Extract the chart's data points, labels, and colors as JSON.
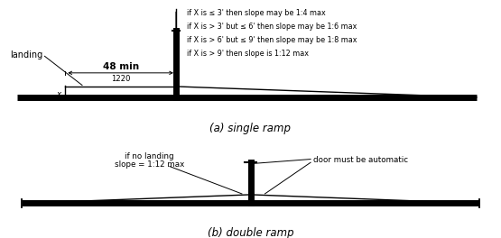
{
  "bg_color": "#ffffff",
  "line_color": "#000000",
  "thick_line_lw": 5,
  "thin_line_lw": 1.0,
  "post_lw": 5,
  "annotation_fontsize": 5.8,
  "label_fontsize": 7.5,
  "caption_fontsize": 8.5,
  "single_ramp": {
    "caption": "(a) single ramp",
    "landing_label": "landing",
    "dim_label_top": "48 min",
    "dim_label_bot": "1220",
    "x_label": "x",
    "annotations": [
      "if X is ≤ 3' then slope may be 1:4 max",
      "if X is > 3' but ≤ 6' then slope may be 1:6 max",
      "if X is > 6' but ≤ 9' then slope may be 1:8 max",
      "if X is > 9' then slope is 1:12 max"
    ]
  },
  "double_ramp": {
    "caption": "(b) double ramp",
    "left_label_line1": "if no landing",
    "left_label_line2": "slope = 1:12 max",
    "right_label": "door must be automatic"
  }
}
